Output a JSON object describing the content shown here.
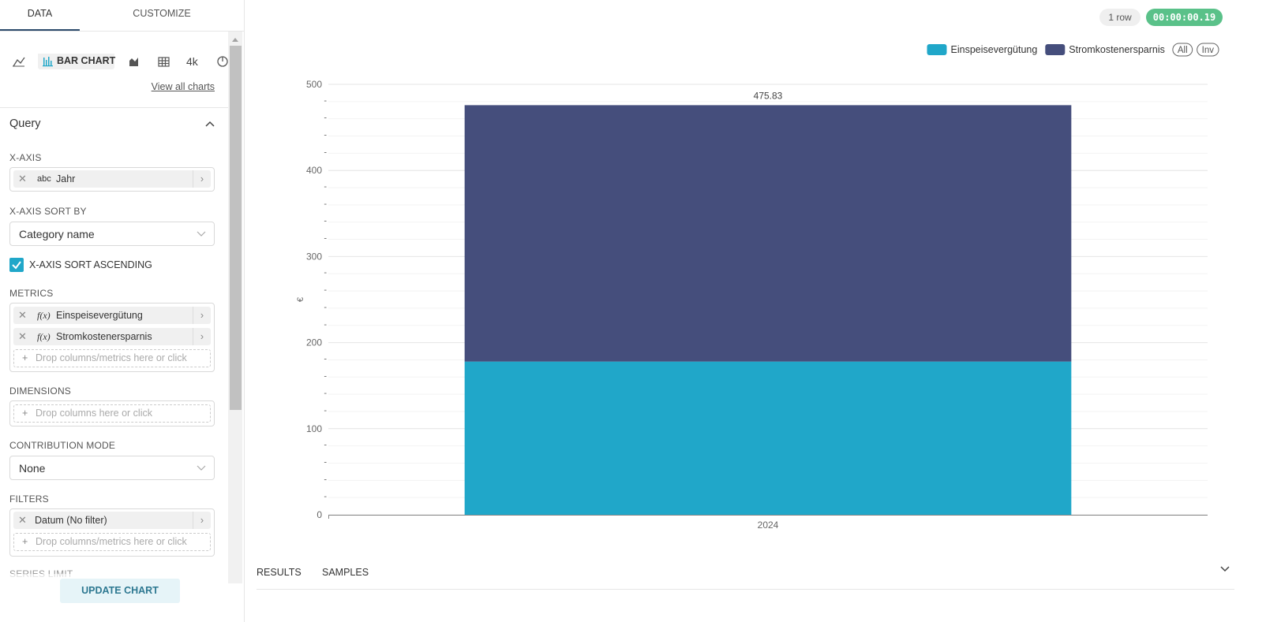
{
  "tabs": [
    "DATA",
    "CUSTOMIZE"
  ],
  "viz": {
    "active": "BAR CHART",
    "other": "4k",
    "link": "View all charts"
  },
  "query": {
    "title": "Query",
    "x_axis": {
      "label": "X-AXIS",
      "type_badge": "abc",
      "column": "Jahr"
    },
    "sort_by": {
      "label": "X-AXIS SORT BY",
      "value": "Category name"
    },
    "sort_ascending": {
      "label": "X-AXIS SORT ASCENDING"
    },
    "metrics": {
      "label": "METRICS",
      "badge": "f(x)",
      "items": [
        "Einspeisevergütung",
        "Stromkostenersparnis"
      ],
      "placeholder": "Drop columns/metrics here or click"
    },
    "dimensions": {
      "label": "DIMENSIONS",
      "placeholder": "Drop columns here or click"
    },
    "contribution": {
      "label": "CONTRIBUTION MODE",
      "value": "None"
    },
    "filters": {
      "label": "FILTERS",
      "items": [
        "Datum (No filter)"
      ],
      "placeholder": "Drop columns/metrics here or click"
    },
    "series_limit": {
      "label": "SERIES LIMIT"
    }
  },
  "button": "UPDATE CHART",
  "status": {
    "rows": "1 row",
    "time": "00:00:00.19"
  },
  "bottom_tabs": [
    "RESULTS",
    "SAMPLES"
  ],
  "chart_data": {
    "type": "bar",
    "stacked": true,
    "categories": [
      "2024"
    ],
    "series": [
      {
        "name": "Einspeisevergütung",
        "color": "#20a7c9",
        "values": [
          178
        ]
      },
      {
        "name": "Stromkostenersparnis",
        "color": "#454e7c",
        "values": [
          297.83
        ]
      }
    ],
    "total_labels": [
      475.83
    ],
    "ylabel": "€",
    "ylim": [
      0,
      500
    ],
    "yticks": [
      0,
      100,
      200,
      300,
      400,
      500
    ],
    "yminor_ticks": [
      {
        "value": 20,
        "label": "-"
      },
      {
        "value": 40,
        "label": "-"
      },
      {
        "value": 60,
        "label": "-"
      },
      {
        "value": 80,
        "label": "-"
      },
      {
        "value": 120,
        "label": "-"
      },
      {
        "value": 140,
        "label": "-"
      },
      {
        "value": 160,
        "label": "-"
      },
      {
        "value": 180,
        "label": "-"
      },
      {
        "value": 220,
        "label": "-"
      },
      {
        "value": 240,
        "label": "-"
      },
      {
        "value": 260,
        "label": "-"
      },
      {
        "value": 280,
        "label": "-"
      },
      {
        "value": 320,
        "label": "-"
      },
      {
        "value": 340,
        "label": "-"
      },
      {
        "value": 360,
        "label": "-"
      },
      {
        "value": 380,
        "label": "-"
      },
      {
        "value": 420,
        "label": "-"
      },
      {
        "value": 440,
        "label": "-"
      },
      {
        "value": 460,
        "label": "-"
      },
      {
        "value": 480,
        "label": "-"
      }
    ],
    "grid": true,
    "legend_position": "top-right",
    "legend_buttons": [
      "All",
      "Inv"
    ]
  }
}
